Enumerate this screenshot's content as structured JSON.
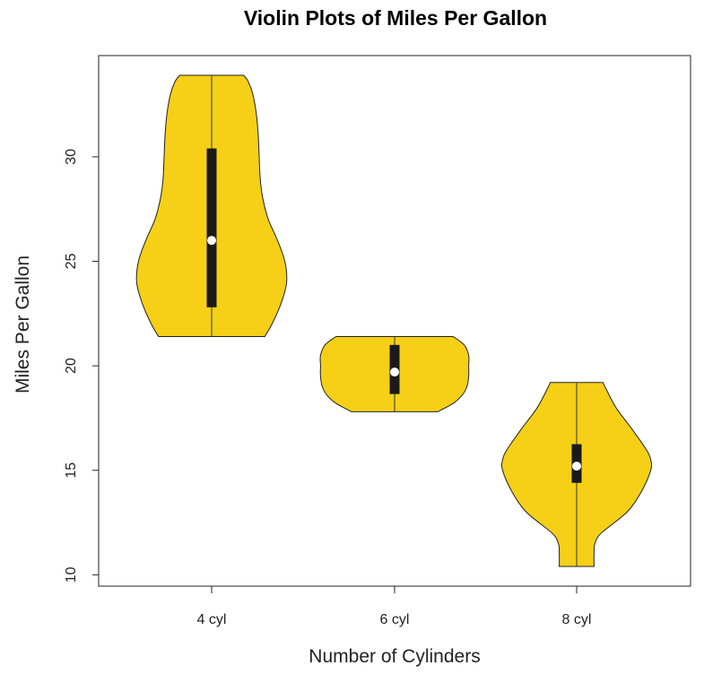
{
  "chart_data": {
    "type": "violin",
    "title": "Violin Plots of Miles Per Gallon",
    "xlabel": "Number of Cylinders",
    "ylabel": "Miles Per Gallon",
    "categories": [
      "4 cyl",
      "6 cyl",
      "8 cyl"
    ],
    "y_ticks": [
      10,
      15,
      20,
      25,
      30
    ],
    "ylim": [
      9.4,
      35.0
    ],
    "grid": false,
    "fill_color": "#F5D016",
    "outline_color": "#222222",
    "box_color": "#1a1a1a",
    "median_color": "#ffffff",
    "violins": [
      {
        "name": "4 cyl",
        "min": 21.4,
        "q1": 22.8,
        "median": 26.0,
        "q3": 30.4,
        "max": 33.9,
        "density": [
          [
            21.4,
            0.58
          ],
          [
            22.0,
            0.66
          ],
          [
            23.0,
            0.76
          ],
          [
            24.0,
            0.82
          ],
          [
            25.0,
            0.8
          ],
          [
            26.0,
            0.72
          ],
          [
            27.0,
            0.62
          ],
          [
            28.0,
            0.56
          ],
          [
            29.0,
            0.53
          ],
          [
            30.0,
            0.52
          ],
          [
            31.0,
            0.51
          ],
          [
            32.0,
            0.49
          ],
          [
            33.0,
            0.45
          ],
          [
            33.6,
            0.4
          ],
          [
            33.9,
            0.35
          ]
        ]
      },
      {
        "name": "6 cyl",
        "min": 17.8,
        "q1": 18.65,
        "median": 19.7,
        "q3": 21.0,
        "max": 21.4,
        "density": [
          [
            17.8,
            0.47
          ],
          [
            18.2,
            0.64
          ],
          [
            18.6,
            0.74
          ],
          [
            19.0,
            0.79
          ],
          [
            19.5,
            0.81
          ],
          [
            20.0,
            0.81
          ],
          [
            20.5,
            0.81
          ],
          [
            21.0,
            0.76
          ],
          [
            21.4,
            0.64
          ]
        ]
      },
      {
        "name": "8 cyl",
        "min": 10.4,
        "q1": 14.4,
        "median": 15.2,
        "q3": 16.25,
        "max": 19.2,
        "density": [
          [
            10.4,
            0.19
          ],
          [
            11.0,
            0.19
          ],
          [
            11.5,
            0.2
          ],
          [
            12.0,
            0.27
          ],
          [
            13.0,
            0.55
          ],
          [
            14.0,
            0.71
          ],
          [
            15.0,
            0.81
          ],
          [
            15.5,
            0.81
          ],
          [
            16.0,
            0.76
          ],
          [
            17.0,
            0.6
          ],
          [
            18.0,
            0.43
          ],
          [
            19.0,
            0.31
          ],
          [
            19.2,
            0.29
          ]
        ]
      }
    ]
  }
}
